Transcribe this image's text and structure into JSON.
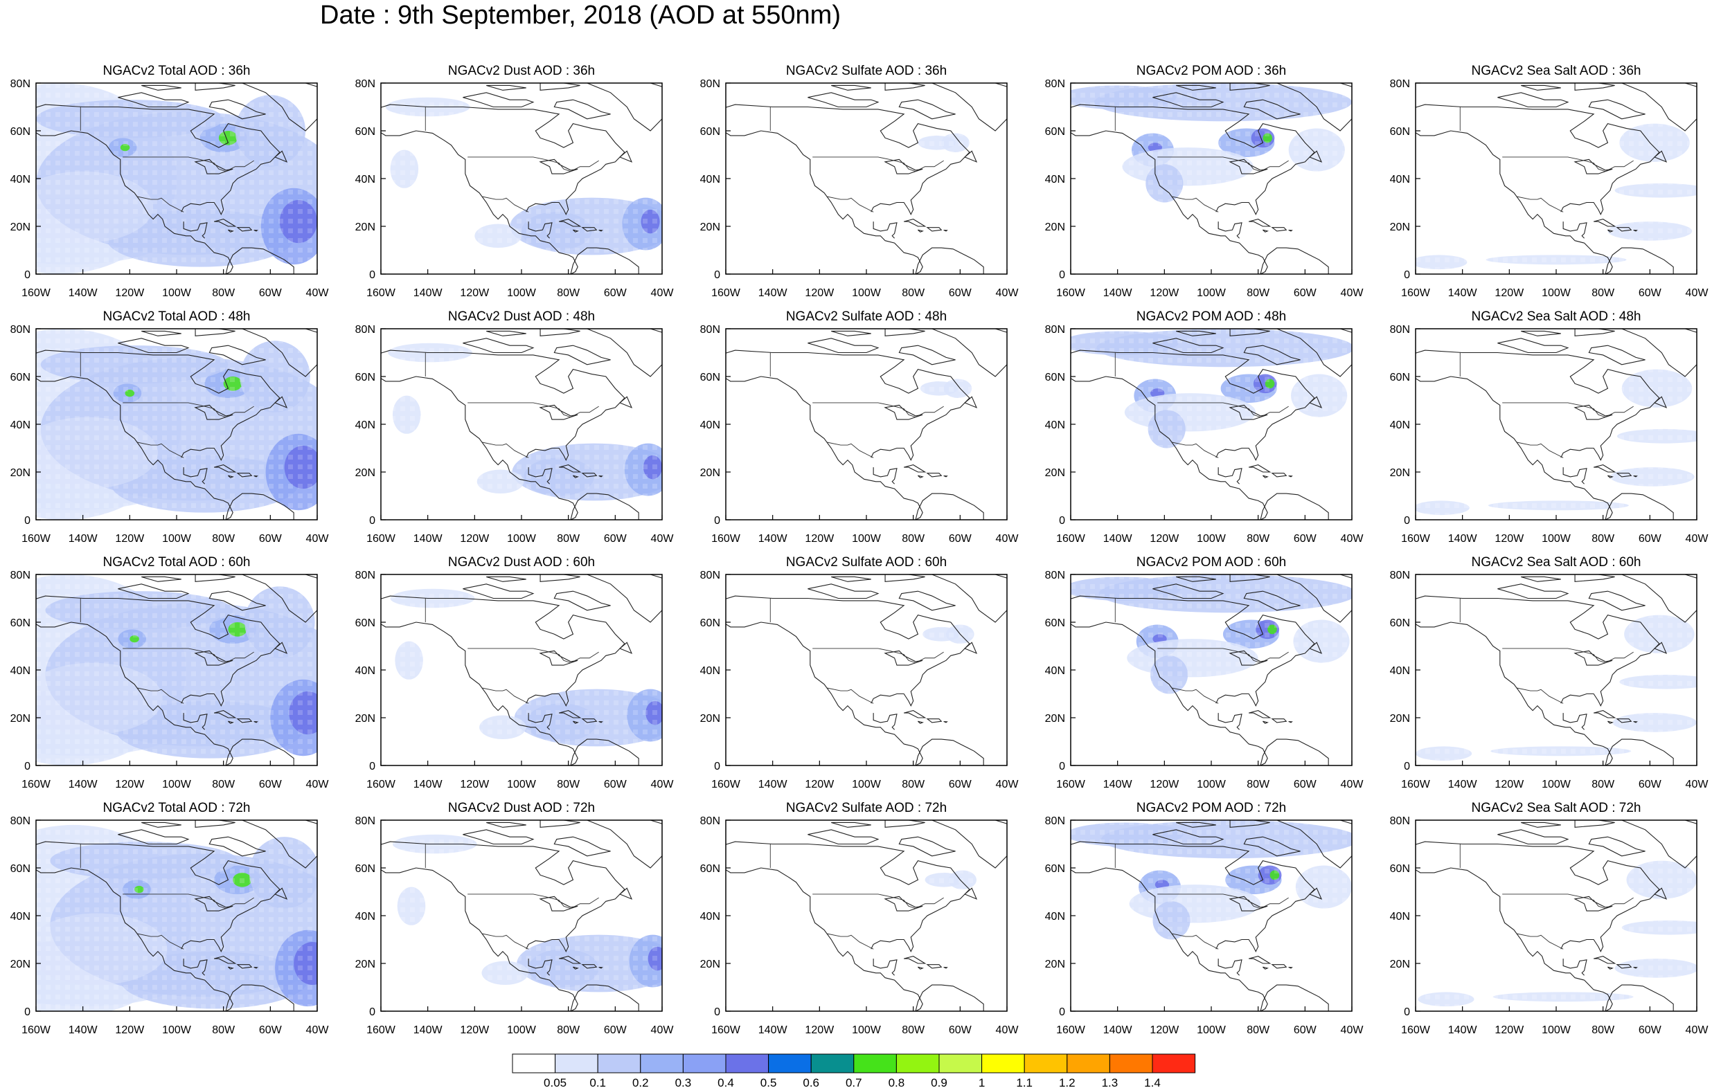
{
  "title": "Date : 9th September, 2018 (AOD at 550nm)",
  "columns": [
    "Total",
    "Dust",
    "Sulfate",
    "POM",
    "Sea Salt"
  ],
  "rows": [
    "36h",
    "48h",
    "60h",
    "72h"
  ],
  "panel_titles": [
    [
      "NGACv2 Total AOD : 36h",
      "NGACv2 Dust AOD : 36h",
      "NGACv2 Sulfate AOD : 36h",
      "NGACv2 POM AOD : 36h",
      "NGACv2 Sea Salt AOD : 36h"
    ],
    [
      "NGACv2 Total AOD : 48h",
      "NGACv2 Dust AOD : 48h",
      "NGACv2 Sulfate AOD : 48h",
      "NGACv2 POM AOD : 48h",
      "NGACv2 Sea Salt AOD : 48h"
    ],
    [
      "NGACv2 Total AOD : 60h",
      "NGACv2 Dust AOD : 60h",
      "NGACv2 Sulfate AOD : 60h",
      "NGACv2 POM AOD : 60h",
      "NGACv2 Sea Salt AOD : 60h"
    ],
    [
      "NGACv2 Total AOD : 72h",
      "NGACv2 Dust AOD : 72h",
      "NGACv2 Sulfate AOD : 72h",
      "NGACv2 POM AOD : 72h",
      "NGACv2 Sea Salt  AOD : 72h"
    ]
  ],
  "x_ticks": [
    "160W",
    "140W",
    "120W",
    "100W",
    "80W",
    "60W",
    "40W"
  ],
  "y_ticks": [
    "0",
    "20N",
    "40N",
    "60N",
    "80N"
  ],
  "colorbar": {
    "colors": [
      "#ffffff",
      "#dbe4fb",
      "#bccbf8",
      "#99b2f6",
      "#8aa1f5",
      "#6b72e8",
      "#0a6fe6",
      "#088f8f",
      "#45e21a",
      "#93f411",
      "#c6f94a",
      "#ffff00",
      "#ffc300",
      "#ffa400",
      "#ff7800",
      "#ff2a14"
    ],
    "labels": [
      "0.05",
      "0.1",
      "0.2",
      "0.3",
      "0.4",
      "0.5",
      "0.6",
      "0.7",
      "0.8",
      "0.9",
      "1",
      "1.1",
      "1.2",
      "1.3",
      "1.4"
    ]
  },
  "map_extent": {
    "lon": [
      -160,
      -40
    ],
    "lat": [
      0,
      80
    ]
  }
}
